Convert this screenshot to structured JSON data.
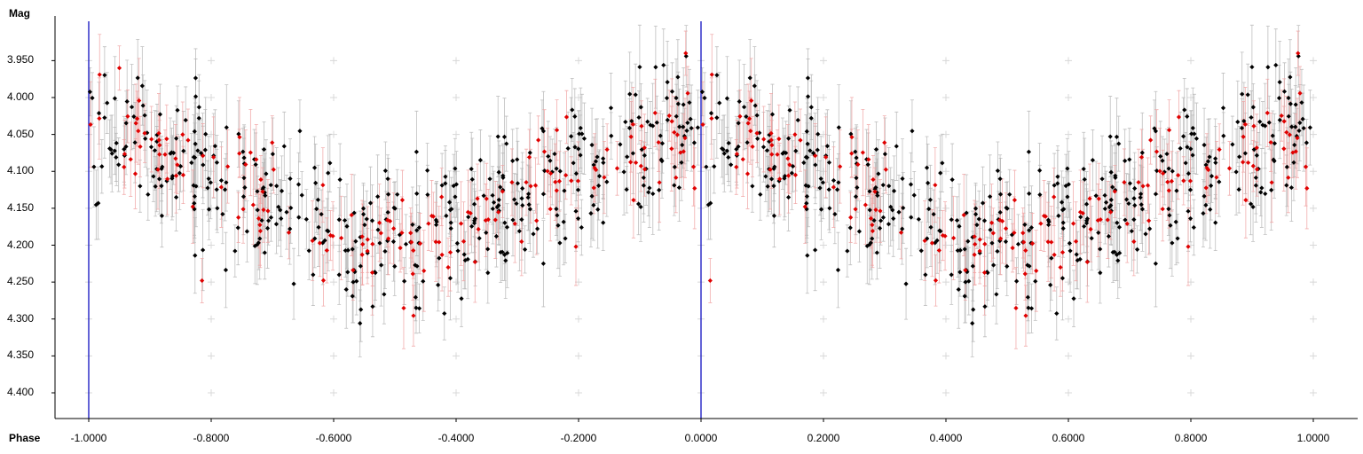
{
  "chart_data": {
    "type": "scatter",
    "title": "",
    "xlabel": "Phase",
    "ylabel": "Mag",
    "xlim": [
      -1.05,
      1.05
    ],
    "ylim": [
      4.42,
      3.9
    ],
    "y_inverted": true,
    "x_ticks": [
      "-1.0000",
      "-0.8000",
      "-0.6000",
      "-0.4000",
      "-0.2000",
      "0.0000",
      "0.2000",
      "0.4000",
      "0.6000",
      "0.8000",
      "1.0000"
    ],
    "y_ticks": [
      "3.950",
      "4.000",
      "4.050",
      "4.100",
      "4.150",
      "4.200",
      "4.250",
      "4.300",
      "4.350",
      "4.400"
    ],
    "vertical_markers": [
      -1.0,
      0.0
    ],
    "series": [
      {
        "color": "#000000",
        "errorbar_color": "#b4b4b4",
        "points_per_cycle": 420
      },
      {
        "color": "#e00000",
        "errorbar_color": "#f0a0a0",
        "points_per_cycle": 160
      }
    ],
    "light_curve": {
      "max_light_mag": 4.05,
      "min_light_mag": 4.19,
      "min_light_phase": -0.5,
      "scatter_mag": 0.045,
      "error_mag": 0.045
    },
    "outliers": [
      {
        "x": -0.025,
        "y": 3.94
      },
      {
        "x": 0.975,
        "y": 3.94
      },
      {
        "x": -0.95,
        "y": 3.96
      },
      {
        "x": -0.815,
        "y": 4.248
      },
      {
        "x": 0.015,
        "y": 4.248
      }
    ],
    "grid": "plus-markers",
    "legend": "none"
  }
}
